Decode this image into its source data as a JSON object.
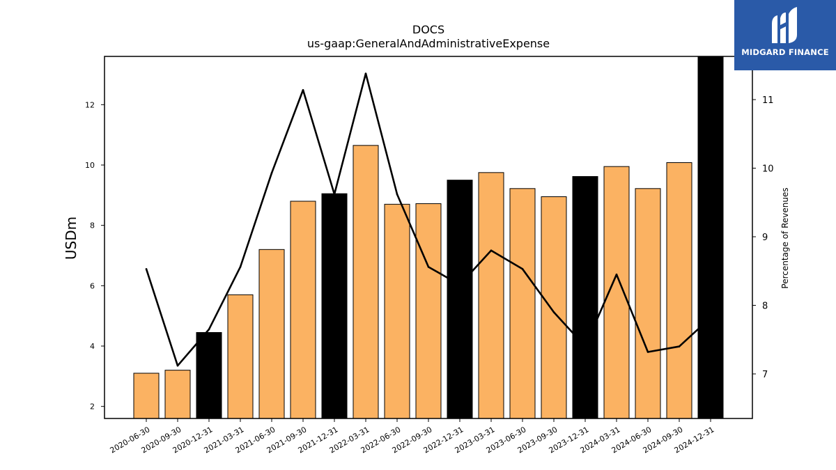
{
  "chart_data": {
    "type": "bar",
    "title": "DOCS",
    "subtitle": "us-gaap:GeneralAndAdministrativeExpense",
    "ylabel": "USDm",
    "ylabel_right": "Percentage of Revenues",
    "categories": [
      "2020-06-30",
      "2020-09-30",
      "2020-12-31",
      "2021-03-31",
      "2021-06-30",
      "2021-09-30",
      "2021-12-31",
      "2022-03-31",
      "2022-06-30",
      "2022-09-30",
      "2022-12-31",
      "2023-03-31",
      "2023-06-30",
      "2023-09-30",
      "2023-12-31",
      "2024-03-31",
      "2024-06-30",
      "2024-09-30",
      "2024-12-31"
    ],
    "series": [
      {
        "axis": "left",
        "kind": "bar",
        "values": [
          3.1,
          3.2,
          4.45,
          5.7,
          7.2,
          8.8,
          9.05,
          10.65,
          8.7,
          8.72,
          9.5,
          9.75,
          9.22,
          8.95,
          9.62,
          9.95,
          9.22,
          10.08,
          13.6
        ]
      },
      {
        "axis": "right",
        "kind": "line",
        "values": [
          8.53,
          7.12,
          7.65,
          8.56,
          9.93,
          11.14,
          9.62,
          11.38,
          9.62,
          8.56,
          8.3,
          8.8,
          8.53,
          7.9,
          7.4,
          8.45,
          7.32,
          7.4,
          7.82
        ]
      }
    ],
    "highlight_categories": [
      "2020-12-31",
      "2021-12-31",
      "2022-12-31",
      "2023-12-31",
      "2024-12-31"
    ],
    "ylim": [
      1.6,
      13.6
    ],
    "ylim_right": [
      6.35,
      11.63
    ],
    "yticks": [
      2,
      4,
      6,
      8,
      10,
      12
    ],
    "yticks_right": [
      7,
      8,
      9,
      10,
      11
    ],
    "colors": {
      "bar": "#fbb262",
      "bar_highlight": "#000000",
      "line": "#000000",
      "logo_bg": "#2a5aa8"
    },
    "grid": false
  },
  "logo": {
    "text": "MIDGARD FINANCE",
    "icon": "midgard-logo-icon"
  }
}
